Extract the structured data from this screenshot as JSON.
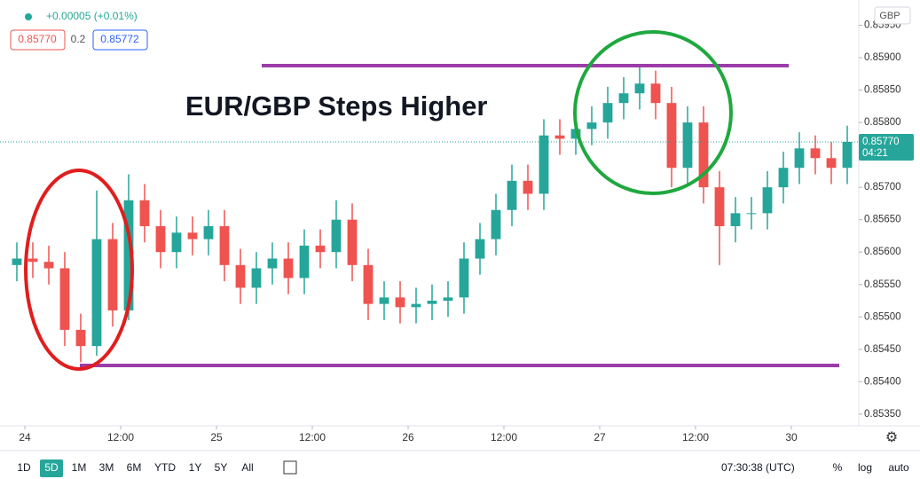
{
  "header": {
    "change": "+0.00005 (+0.01%)",
    "bid": "0.85770",
    "spread": "0.2",
    "ask": "0.85772",
    "currency": "GBP"
  },
  "chart_data": {
    "type": "candlestick",
    "title": "EUR/GBP Steps Higher",
    "open": [
      0.8558,
      0.8559,
      0.85585,
      0.85575,
      0.8548,
      0.85455,
      0.8562,
      0.8551,
      0.8568,
      0.8564,
      0.856,
      0.8563,
      0.8562,
      0.8564,
      0.8558,
      0.85545,
      0.85575,
      0.8559,
      0.8556,
      0.8561,
      0.856,
      0.8565,
      0.8558,
      0.8552,
      0.8553,
      0.85515,
      0.8552,
      0.85525,
      0.8553,
      0.8559,
      0.8562,
      0.85665,
      0.8571,
      0.8569,
      0.8578,
      0.85775,
      0.8579,
      0.858,
      0.8583,
      0.85845,
      0.8586,
      0.8583,
      0.8573,
      0.858,
      0.857,
      0.8564,
      0.8566,
      0.8566,
      0.857,
      0.8573,
      0.8576,
      0.85745,
      0.8573
    ],
    "high": [
      0.85615,
      0.85615,
      0.8561,
      0.856,
      0.85505,
      0.85695,
      0.85645,
      0.8572,
      0.85705,
      0.85665,
      0.85655,
      0.85655,
      0.85665,
      0.85665,
      0.85605,
      0.856,
      0.85615,
      0.85615,
      0.85635,
      0.85635,
      0.8568,
      0.85675,
      0.85605,
      0.85555,
      0.85555,
      0.85545,
      0.8555,
      0.85555,
      0.85615,
      0.85645,
      0.8569,
      0.85735,
      0.85735,
      0.85805,
      0.85805,
      0.85815,
      0.85825,
      0.85855,
      0.8587,
      0.85885,
      0.8588,
      0.85855,
      0.85825,
      0.85825,
      0.85725,
      0.85685,
      0.85685,
      0.85725,
      0.85755,
      0.85785,
      0.8578,
      0.8577,
      0.85795
    ],
    "low": [
      0.85555,
      0.8556,
      0.8555,
      0.85455,
      0.8543,
      0.8544,
      0.85485,
      0.85495,
      0.85615,
      0.85575,
      0.85575,
      0.85595,
      0.85595,
      0.85555,
      0.8552,
      0.8552,
      0.8555,
      0.85535,
      0.85535,
      0.85575,
      0.85575,
      0.85555,
      0.85495,
      0.85495,
      0.8549,
      0.8549,
      0.85495,
      0.855,
      0.85505,
      0.85565,
      0.85595,
      0.8564,
      0.85665,
      0.85665,
      0.8575,
      0.8575,
      0.85765,
      0.85775,
      0.85805,
      0.8582,
      0.85805,
      0.857,
      0.85705,
      0.85675,
      0.8558,
      0.85615,
      0.85635,
      0.85635,
      0.85675,
      0.85705,
      0.8572,
      0.85705,
      0.85705
    ],
    "close": [
      0.8559,
      0.85585,
      0.85575,
      0.8548,
      0.85455,
      0.8562,
      0.8551,
      0.8568,
      0.8564,
      0.856,
      0.8563,
      0.8562,
      0.8564,
      0.8558,
      0.85545,
      0.85575,
      0.8559,
      0.8556,
      0.8561,
      0.856,
      0.8565,
      0.8558,
      0.8552,
      0.8553,
      0.85515,
      0.8552,
      0.85525,
      0.8553,
      0.8559,
      0.8562,
      0.85665,
      0.8571,
      0.8569,
      0.8578,
      0.85775,
      0.8579,
      0.858,
      0.8583,
      0.85845,
      0.8586,
      0.8583,
      0.8573,
      0.858,
      0.857,
      0.8564,
      0.8566,
      0.8566,
      0.857,
      0.8573,
      0.8576,
      0.85745,
      0.8573,
      0.8577
    ],
    "up_color": "#26a69a",
    "down_color": "#ef5350",
    "xlim": [
      0,
      53
    ],
    "xticks": [
      {
        "value": 1,
        "label": "24"
      },
      {
        "value": 7,
        "label": "12:00"
      },
      {
        "value": 13,
        "label": "25"
      },
      {
        "value": 19,
        "label": "12:00"
      },
      {
        "value": 25,
        "label": "26"
      },
      {
        "value": 31,
        "label": "12:00"
      },
      {
        "value": 37,
        "label": "27"
      },
      {
        "value": 43,
        "label": "12:00"
      },
      {
        "value": 49,
        "label": "30"
      }
    ],
    "ylim": [
      0.85332,
      0.85989
    ],
    "yticks": [
      {
        "value": 0.8535,
        "label": "0.85350"
      },
      {
        "value": 0.854,
        "label": "0.85400"
      },
      {
        "value": 0.8545,
        "label": "0.85450"
      },
      {
        "value": 0.855,
        "label": "0.85500"
      },
      {
        "value": 0.8555,
        "label": "0.85550"
      },
      {
        "value": 0.856,
        "label": "0.85600"
      },
      {
        "value": 0.8565,
        "label": "0.85650"
      },
      {
        "value": 0.857,
        "label": "0.85700"
      },
      {
        "value": 0.8575,
        "label": "0.85750"
      },
      {
        "value": 0.858,
        "label": "0.85800"
      },
      {
        "value": 0.8585,
        "label": "0.85850"
      },
      {
        "value": 0.859,
        "label": "0.85900"
      },
      {
        "value": 0.8595,
        "label": "0.85950"
      }
    ],
    "last_price": {
      "value": 0.8577,
      "label": "0.85770",
      "countdown": "04:21"
    }
  },
  "toolbar": {
    "ranges": [
      "1D",
      "5D",
      "1M",
      "3M",
      "6M",
      "YTD",
      "1Y",
      "5Y",
      "All"
    ],
    "time": "07:30:38 (UTC)",
    "percent": "%",
    "log": "log",
    "auto": "auto"
  }
}
